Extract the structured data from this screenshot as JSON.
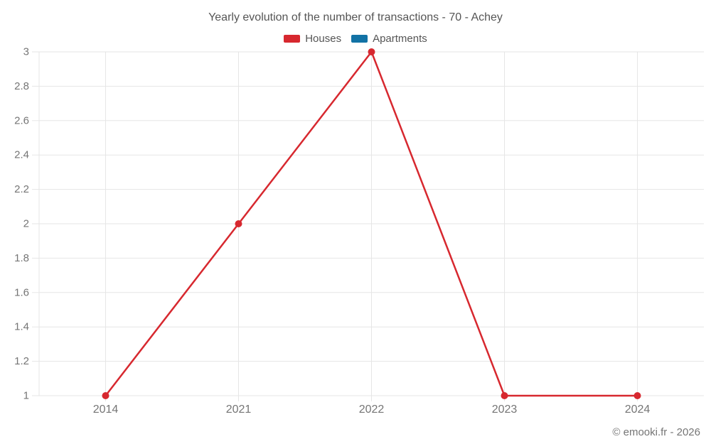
{
  "footer": "© emooki.fr - 2026",
  "colors": {
    "houses": "#d7282f",
    "apartments": "#1272a5",
    "gridline": "#e6e6e6",
    "axis_label": "#757575",
    "title_text": "#555555",
    "background": "#ffffff"
  },
  "chart_data": {
    "type": "line",
    "title": "Yearly evolution of the number of transactions - 70 - Achey",
    "categories": [
      "2014",
      "2021",
      "2022",
      "2023",
      "2024"
    ],
    "series": [
      {
        "name": "Houses",
        "color": "#d7282f",
        "values": [
          1,
          2,
          3,
          1,
          1
        ]
      },
      {
        "name": "Apartments",
        "color": "#1272a5",
        "values": []
      }
    ],
    "xlabel": "",
    "ylabel": "",
    "ylim": [
      1,
      3
    ],
    "ytick_step": 0.2,
    "ytick_labels": [
      "1",
      "1.2",
      "1.4",
      "1.6",
      "1.8",
      "2",
      "2.2",
      "2.4",
      "2.6",
      "2.8",
      "3"
    ],
    "grid": true,
    "legend_position": "top",
    "marker": "circle",
    "marker_radius": 5,
    "line_width": 2.5
  }
}
